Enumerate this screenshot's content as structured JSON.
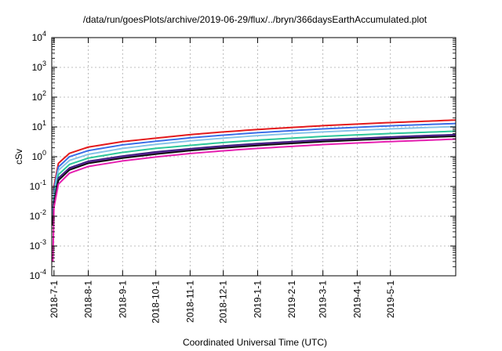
{
  "chart_data": {
    "type": "line",
    "title": "/data/run/goesPlots/archive/2019-06-29/flux/../bryn/366daysEarthAccumulated.plot",
    "xlabel": "Coordinated Universal Time (UTC)",
    "ylabel": "cSv",
    "yscale": "log",
    "ylim": [
      0.0001,
      10000
    ],
    "y_ticks": [
      {
        "base": "10",
        "exp": "-4"
      },
      {
        "base": "10",
        "exp": "-3"
      },
      {
        "base": "10",
        "exp": "-2"
      },
      {
        "base": "10",
        "exp": "-1"
      },
      {
        "base": "10",
        "exp": "0"
      },
      {
        "base": "10",
        "exp": "1"
      },
      {
        "base": "10",
        "exp": "2"
      },
      {
        "base": "10",
        "exp": "3"
      },
      {
        "base": "10",
        "exp": "4"
      }
    ],
    "xlim": [
      "2018-06-29",
      "2019-06-29"
    ],
    "x_ticks": [
      "2018-7-1",
      "2018-8-1",
      "2018-9-1",
      "2018-10-1",
      "2018-11-1",
      "2018-12-1",
      "2019-1-1",
      "2019-2-1",
      "2019-3-1",
      "2019-4-1",
      "2019-5-1"
    ],
    "grid": true,
    "x": [
      "2018-06-30",
      "2018-07-01",
      "2018-07-05",
      "2018-07-15",
      "2018-08-01",
      "2018-09-01",
      "2018-10-01",
      "2018-11-01",
      "2018-12-01",
      "2019-01-01",
      "2019-02-01",
      "2019-03-01",
      "2019-04-01",
      "2019-05-01",
      "2019-06-01",
      "2019-06-29"
    ],
    "series": [
      {
        "color": "#e41a1c",
        "values": [
          0.02,
          0.1,
          0.6,
          1.3,
          2.1,
          3.2,
          4.2,
          5.5,
          6.8,
          8.2,
          9.6,
          11,
          12.5,
          14,
          15.5,
          17
        ]
      },
      {
        "color": "#3b6fe8",
        "values": [
          0.015,
          0.08,
          0.45,
          1.0,
          1.6,
          2.5,
          3.3,
          4.3,
          5.3,
          6.4,
          7.5,
          8.6,
          9.7,
          10.9,
          12,
          13
        ]
      },
      {
        "color": "#87c4e8",
        "values": [
          0.012,
          0.06,
          0.35,
          0.75,
          1.2,
          1.9,
          2.6,
          3.4,
          4.2,
          5.1,
          6.0,
          6.8,
          7.7,
          8.6,
          9.5,
          10.3
        ]
      },
      {
        "color": "#2ec79a",
        "values": [
          0.008,
          0.04,
          0.25,
          0.55,
          0.9,
          1.4,
          1.9,
          2.4,
          3.0,
          3.6,
          4.2,
          4.8,
          5.4,
          6.0,
          6.6,
          7.2
        ]
      },
      {
        "color": "#3a1a7a",
        "values": [
          0.006,
          0.03,
          0.19,
          0.42,
          0.7,
          1.05,
          1.45,
          1.85,
          2.3,
          2.75,
          3.2,
          3.7,
          4.1,
          4.6,
          5.1,
          5.5
        ]
      },
      {
        "color": "#6a2ca8",
        "values": [
          0.005,
          0.028,
          0.17,
          0.38,
          0.64,
          0.96,
          1.3,
          1.7,
          2.1,
          2.5,
          2.95,
          3.4,
          3.8,
          4.25,
          4.7,
          5.1
        ]
      },
      {
        "color": "#111111",
        "values": [
          0.005,
          0.026,
          0.16,
          0.36,
          0.6,
          0.9,
          1.22,
          1.6,
          1.98,
          2.38,
          2.8,
          3.2,
          3.6,
          4.0,
          4.45,
          4.85
        ]
      },
      {
        "color": "#e61fb0",
        "values": [
          0.0003,
          0.02,
          0.12,
          0.28,
          0.47,
          0.72,
          0.98,
          1.28,
          1.58,
          1.9,
          2.22,
          2.55,
          2.88,
          3.22,
          3.55,
          3.9
        ]
      }
    ]
  }
}
